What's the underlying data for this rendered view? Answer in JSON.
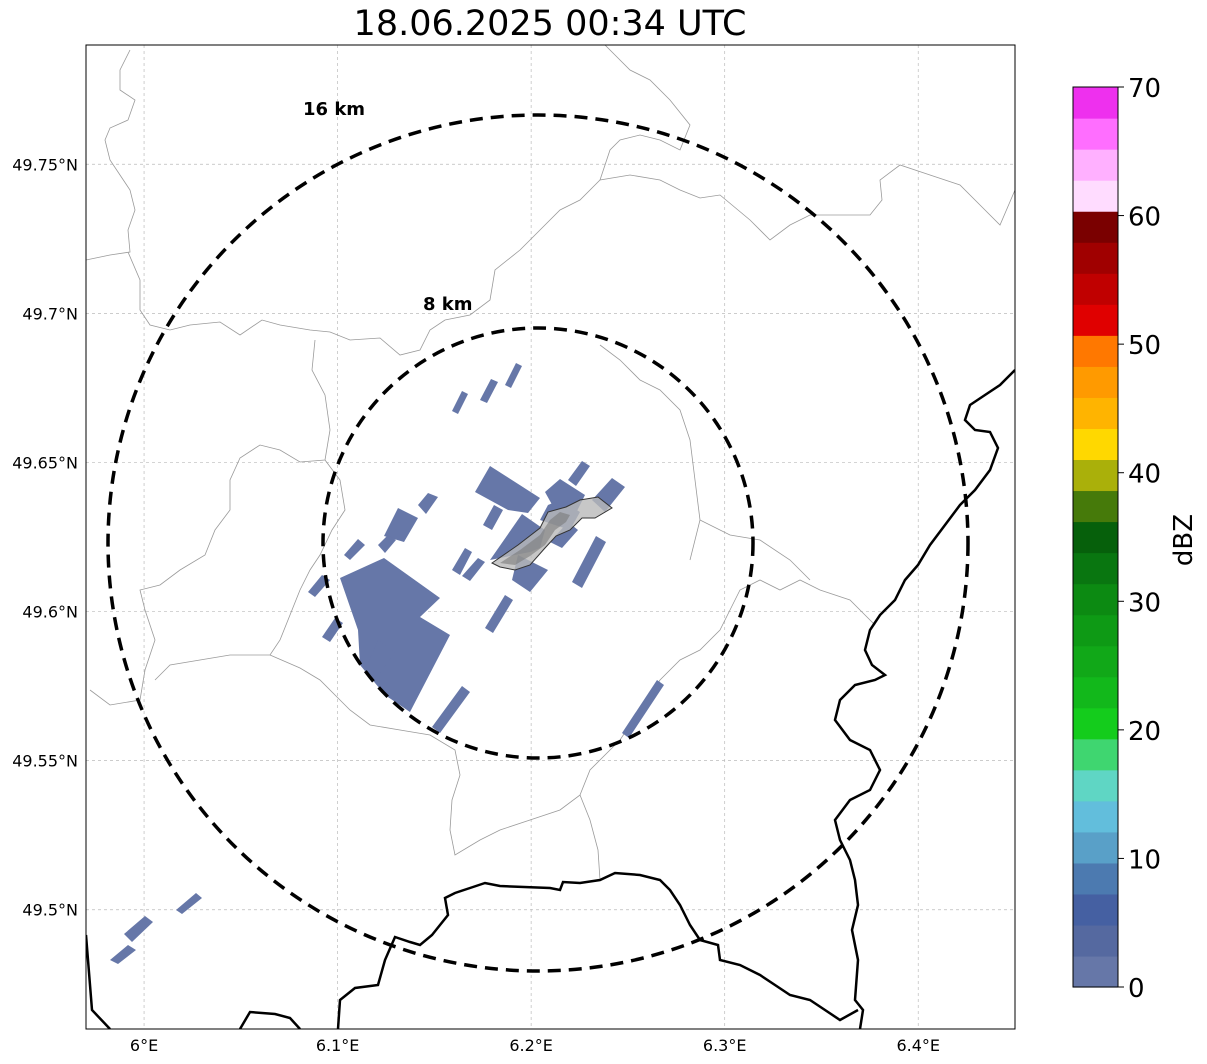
{
  "title": "18.06.2025 00:34 UTC",
  "map": {
    "lon_range": [
      5.97,
      6.45
    ],
    "lat_range": [
      49.46,
      49.79
    ],
    "lon_ticks": [
      {
        "value": 6.0,
        "label": "6°E"
      },
      {
        "value": 6.1,
        "label": "6.1°E"
      },
      {
        "value": 6.2,
        "label": "6.2°E"
      },
      {
        "value": 6.3,
        "label": "6.3°E"
      },
      {
        "value": 6.4,
        "label": "6.4°E"
      }
    ],
    "lat_ticks": [
      {
        "value": 49.75,
        "label": "49.75°N"
      },
      {
        "value": 49.7,
        "label": "49.7°N"
      },
      {
        "value": 49.65,
        "label": "49.65°N"
      },
      {
        "value": 49.6,
        "label": "49.6°N"
      },
      {
        "value": 49.55,
        "label": "49.55°N"
      },
      {
        "value": 49.5,
        "label": "49.5°N"
      }
    ],
    "grid": true,
    "center": {
      "lon": 6.203,
      "lat": 49.623
    },
    "range_rings": [
      {
        "radius_km": 8,
        "label": "8 km"
      },
      {
        "radius_km": 16,
        "label": "16 km"
      }
    ],
    "echo_color": "#6677a8"
  },
  "colorbar": {
    "label": "dBZ",
    "min": 0,
    "max": 70,
    "ticks": [
      "0",
      "10",
      "20",
      "30",
      "40",
      "50",
      "60",
      "70"
    ],
    "colors": [
      "#6677a8",
      "#5569a0",
      "#4560a2",
      "#4c7ab0",
      "#59a0c8",
      "#62bedc",
      "#5fd6c4",
      "#3fd670",
      "#14cc1c",
      "#12b81b",
      "#11a818",
      "#0e9a15",
      "#0c8a12",
      "#097610",
      "#06600b",
      "#467a0a",
      "#aab00a",
      "#ffd800",
      "#ffb400",
      "#ff9a00",
      "#ff7800",
      "#e00000",
      "#c00000",
      "#a00000",
      "#7a0000",
      "#ffdcff",
      "#ffb0ff",
      "#ff6eff",
      "#ee30ee"
    ]
  }
}
